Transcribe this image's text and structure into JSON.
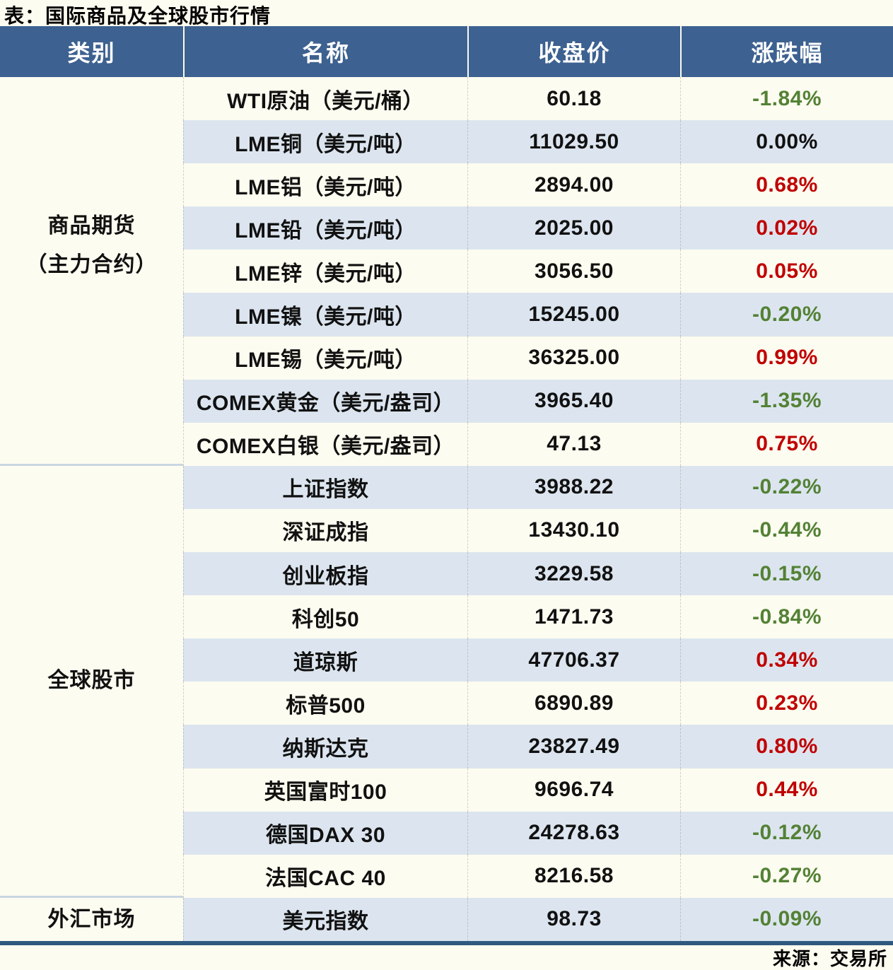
{
  "colors": {
    "up": "#c00000",
    "down": "#538135",
    "flat": "#111111",
    "header_bg": "#3d6190",
    "row_alt": "#dce5ef",
    "page_bg": "#fdfcf0",
    "group_divider": "#c9d6e3",
    "bottom_border": "#2f5a80"
  },
  "chart_data": {
    "type": "table",
    "title": "表：国际商品及全球股市行情",
    "source": "来源：交易所",
    "columns": [
      "类别",
      "名称",
      "收盘价",
      "涨跌幅"
    ],
    "groups": [
      {
        "line1": "商品期货",
        "line2": "（主力合约）",
        "row_count": 9
      },
      {
        "line1": "全球股市",
        "row_count": 10
      },
      {
        "line1": "外汇市场",
        "row_count": 1
      }
    ],
    "rows": [
      {
        "category": "商品期货（主力合约）",
        "name": "WTI原油（美元/桶）",
        "close": "60.18",
        "change": "-1.84%",
        "direction": "down"
      },
      {
        "category": "商品期货（主力合约）",
        "name": "LME铜（美元/吨）",
        "close": "11029.50",
        "change": "0.00%",
        "direction": "flat"
      },
      {
        "category": "商品期货（主力合约）",
        "name": "LME铝（美元/吨）",
        "close": "2894.00",
        "change": "0.68%",
        "direction": "up"
      },
      {
        "category": "商品期货（主力合约）",
        "name": "LME铅（美元/吨）",
        "close": "2025.00",
        "change": "0.02%",
        "direction": "up"
      },
      {
        "category": "商品期货（主力合约）",
        "name": "LME锌（美元/吨）",
        "close": "3056.50",
        "change": "0.05%",
        "direction": "up"
      },
      {
        "category": "商品期货（主力合约）",
        "name": "LME镍（美元/吨）",
        "close": "15245.00",
        "change": "-0.20%",
        "direction": "down"
      },
      {
        "category": "商品期货（主力合约）",
        "name": "LME锡（美元/吨）",
        "close": "36325.00",
        "change": "0.99%",
        "direction": "up"
      },
      {
        "category": "商品期货（主力合约）",
        "name": "COMEX黄金（美元/盎司）",
        "close": "3965.40",
        "change": "-1.35%",
        "direction": "down"
      },
      {
        "category": "商品期货（主力合约）",
        "name": "COMEX白银（美元/盎司）",
        "close": "47.13",
        "change": "0.75%",
        "direction": "up"
      },
      {
        "category": "全球股市",
        "name": "上证指数",
        "close": "3988.22",
        "change": "-0.22%",
        "direction": "down"
      },
      {
        "category": "全球股市",
        "name": "深证成指",
        "close": "13430.10",
        "change": "-0.44%",
        "direction": "down"
      },
      {
        "category": "全球股市",
        "name": "创业板指",
        "close": "3229.58",
        "change": "-0.15%",
        "direction": "down"
      },
      {
        "category": "全球股市",
        "name": "科创50",
        "close": "1471.73",
        "change": "-0.84%",
        "direction": "down"
      },
      {
        "category": "全球股市",
        "name": "道琼斯",
        "close": "47706.37",
        "change": "0.34%",
        "direction": "up"
      },
      {
        "category": "全球股市",
        "name": "标普500",
        "close": "6890.89",
        "change": "0.23%",
        "direction": "up"
      },
      {
        "category": "全球股市",
        "name": "纳斯达克",
        "close": "23827.49",
        "change": "0.80%",
        "direction": "up"
      },
      {
        "category": "全球股市",
        "name": "英国富时100",
        "close": "9696.74",
        "change": "0.44%",
        "direction": "up"
      },
      {
        "category": "全球股市",
        "name": "德国DAX 30",
        "close": "24278.63",
        "change": "-0.12%",
        "direction": "down"
      },
      {
        "category": "全球股市",
        "name": "法国CAC 40",
        "close": "8216.58",
        "change": "-0.27%",
        "direction": "down"
      },
      {
        "category": "外汇市场",
        "name": "美元指数",
        "close": "98.73",
        "change": "-0.09%",
        "direction": "down"
      }
    ]
  }
}
